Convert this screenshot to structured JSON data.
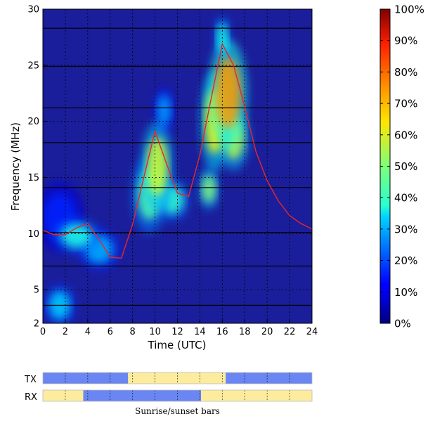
{
  "chart_data": {
    "type": "heatmap",
    "xlabel": "Time (UTC)",
    "ylabel": "Frequency (MHz)",
    "xlim": [
      0,
      24
    ],
    "ylim": [
      2,
      30
    ],
    "x_ticks": [
      "0",
      "2",
      "4",
      "6",
      "8",
      "10",
      "12",
      "14",
      "16",
      "18",
      "20",
      "22",
      "24"
    ],
    "y_ticks": [
      "2",
      "5",
      "10",
      "15",
      "20",
      "25",
      "30"
    ],
    "grid": true,
    "horizontal_band_lines_mhz": [
      3.6,
      7.1,
      10.1,
      14.1,
      18.1,
      21.2,
      24.9,
      28.3
    ],
    "colormap": "jet",
    "colorbar_ticks": [
      "0%",
      "10%",
      "20%",
      "30%",
      "40%",
      "50%",
      "60%",
      "70%",
      "80%",
      "90%",
      "100%"
    ],
    "heat_blobs": [
      {
        "t": 1.5,
        "f": 3.6,
        "sigma_t": 0.9,
        "sigma_f": 1.2,
        "value": 0.33
      },
      {
        "t": 1.5,
        "f": 11.5,
        "sigma_t": 1.4,
        "sigma_f": 2.0,
        "value": 0.16
      },
      {
        "t": 3.0,
        "f": 9.8,
        "sigma_t": 1.3,
        "sigma_f": 1.0,
        "value": 0.4
      },
      {
        "t": 5.0,
        "f": 8.6,
        "sigma_t": 1.2,
        "sigma_f": 1.2,
        "value": 0.3
      },
      {
        "t": 9.5,
        "f": 13.5,
        "sigma_t": 1.0,
        "sigma_f": 2.2,
        "value": 0.45
      },
      {
        "t": 10.2,
        "f": 16.0,
        "sigma_t": 0.9,
        "sigma_f": 2.5,
        "value": 0.58
      },
      {
        "t": 11.5,
        "f": 13.0,
        "sigma_t": 1.0,
        "sigma_f": 1.2,
        "value": 0.42
      },
      {
        "t": 10.8,
        "f": 21.0,
        "sigma_t": 0.6,
        "sigma_f": 1.3,
        "value": 0.28
      },
      {
        "t": 14.8,
        "f": 14.0,
        "sigma_t": 0.6,
        "sigma_f": 1.2,
        "value": 0.5
      },
      {
        "t": 15.3,
        "f": 20.0,
        "sigma_t": 0.8,
        "sigma_f": 2.8,
        "value": 0.62
      },
      {
        "t": 16.5,
        "f": 22.5,
        "sigma_t": 1.1,
        "sigma_f": 3.0,
        "value": 0.72
      },
      {
        "t": 17.0,
        "f": 18.5,
        "sigma_t": 0.9,
        "sigma_f": 1.8,
        "value": 0.55
      },
      {
        "t": 16.0,
        "f": 27.5,
        "sigma_t": 0.5,
        "sigma_f": 1.2,
        "value": 0.4
      }
    ],
    "series": [
      {
        "x": [
          0,
          1,
          2,
          3,
          4,
          5,
          6,
          7,
          8,
          9,
          10,
          11,
          12,
          13,
          14,
          15,
          16,
          17,
          18,
          19,
          20,
          21,
          22,
          23,
          24
        ],
        "y": [
          10.3,
          9.9,
          9.9,
          10.5,
          10.9,
          9.5,
          7.9,
          7.8,
          10.8,
          15.0,
          19.1,
          16.3,
          13.6,
          13.3,
          17.0,
          22.0,
          26.9,
          25.0,
          21.3,
          17.3,
          14.7,
          12.9,
          11.6,
          10.9,
          10.4
        ],
        "color": "#e8252b"
      }
    ]
  },
  "bars": {
    "tx_label": "TX",
    "rx_label": "RX",
    "caption": "Sunrise/sunset bars",
    "day_color": "#fdec9e",
    "night_color": "#6a86f2",
    "tx_segments": [
      {
        "start": 0,
        "end": 7.6,
        "state": "night"
      },
      {
        "start": 7.6,
        "end": 16.3,
        "state": "day"
      },
      {
        "start": 16.3,
        "end": 24,
        "state": "night"
      }
    ],
    "rx_segments": [
      {
        "start": 0,
        "end": 3.6,
        "state": "day"
      },
      {
        "start": 3.6,
        "end": 14.1,
        "state": "night"
      },
      {
        "start": 14.1,
        "end": 24,
        "state": "day"
      }
    ]
  }
}
